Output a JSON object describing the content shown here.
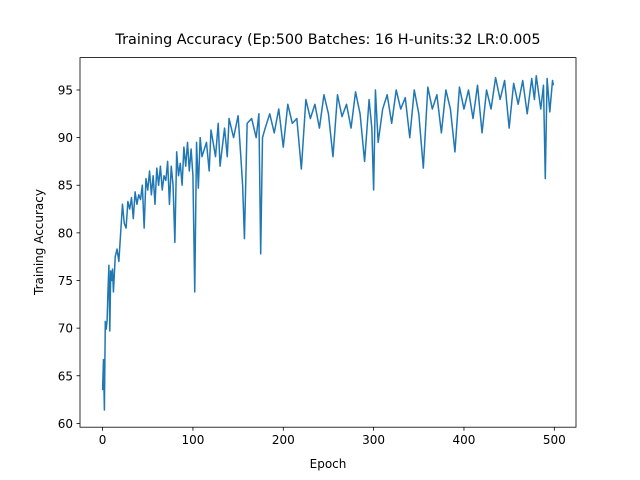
{
  "chart_data": {
    "type": "line",
    "title": "Training Accuracy (Ep:500 Batches: 16 H-units:32 LR:0.005",
    "x_label": "Epoch",
    "y_label": "Training Accuracy",
    "x": [
      0,
      1,
      2,
      3,
      4,
      5,
      6,
      7,
      8,
      9,
      10,
      11,
      12,
      14,
      16,
      18,
      20,
      22,
      24,
      26,
      28,
      30,
      32,
      34,
      36,
      38,
      40,
      42,
      44,
      46,
      48,
      50,
      52,
      54,
      56,
      58,
      60,
      62,
      64,
      66,
      68,
      70,
      72,
      74,
      76,
      78,
      80,
      82,
      84,
      86,
      88,
      90,
      92,
      94,
      96,
      98,
      100,
      102,
      104,
      106,
      108,
      110,
      115,
      118,
      120,
      125,
      128,
      130,
      135,
      138,
      140,
      145,
      150,
      153,
      155,
      157,
      160,
      165,
      170,
      173,
      175,
      177,
      180,
      185,
      190,
      195,
      200,
      205,
      210,
      215,
      220,
      225,
      230,
      235,
      240,
      245,
      250,
      255,
      260,
      265,
      270,
      275,
      280,
      285,
      290,
      295,
      298,
      300,
      302,
      305,
      310,
      315,
      320,
      325,
      330,
      335,
      340,
      345,
      350,
      355,
      360,
      365,
      370,
      375,
      380,
      385,
      390,
      395,
      400,
      405,
      410,
      415,
      420,
      425,
      430,
      435,
      440,
      445,
      450,
      455,
      460,
      465,
      470,
      475,
      478,
      480,
      485,
      488,
      490,
      492,
      495,
      498,
      499
    ],
    "series": [
      {
        "name": "Training Accuracy",
        "color": "#1f77b4",
        "values": [
          63.5,
          66.7,
          61.4,
          70.7,
          69.9,
          70.8,
          74,
          76.6,
          69.7,
          76,
          75,
          76.2,
          73.8,
          77.5,
          78.3,
          77,
          80,
          83,
          81,
          80.5,
          83.3,
          82.5,
          83.7,
          81.5,
          84.3,
          83,
          84,
          83.5,
          85,
          80.5,
          85.7,
          84.5,
          86.5,
          84,
          86,
          83,
          86.8,
          85,
          87,
          84.5,
          86,
          85.5,
          87.5,
          83,
          87,
          85,
          79,
          88.5,
          86,
          87.3,
          85,
          89,
          87,
          89.5,
          86.5,
          88.8,
          86,
          73.8,
          89.5,
          84.7,
          90,
          88,
          89.5,
          86.5,
          90.8,
          88,
          91.5,
          87,
          91,
          88,
          92,
          90,
          92.3,
          88,
          85,
          79.4,
          91.5,
          92,
          90,
          92.5,
          77.8,
          90,
          91,
          92.5,
          90.5,
          93,
          89,
          93.5,
          91.5,
          92,
          86.7,
          94,
          92,
          93.5,
          91,
          94.5,
          92.5,
          88,
          94.5,
          92.2,
          93.5,
          91,
          94.8,
          92.5,
          87.5,
          94,
          91,
          84.5,
          95,
          89.5,
          93,
          94.5,
          91.5,
          95,
          93,
          94.2,
          90,
          95,
          92.5,
          86.8,
          95.3,
          93,
          94.5,
          90.5,
          95,
          93,
          88.5,
          95.3,
          93,
          95,
          92,
          95.5,
          90.5,
          95,
          93,
          96.3,
          94,
          96,
          91,
          95.7,
          93.5,
          96,
          92.5,
          96.2,
          94,
          96.5,
          93,
          95.5,
          85.7,
          96.2,
          92.7,
          96,
          95.5
        ]
      }
    ],
    "xlim": [
      -25,
      524
    ],
    "ylim": [
      59.6,
      98.4
    ],
    "xticks": [
      0,
      100,
      200,
      300,
      400,
      500
    ],
    "yticks": [
      60,
      65,
      70,
      75,
      80,
      85,
      90,
      95
    ],
    "grid": false
  }
}
